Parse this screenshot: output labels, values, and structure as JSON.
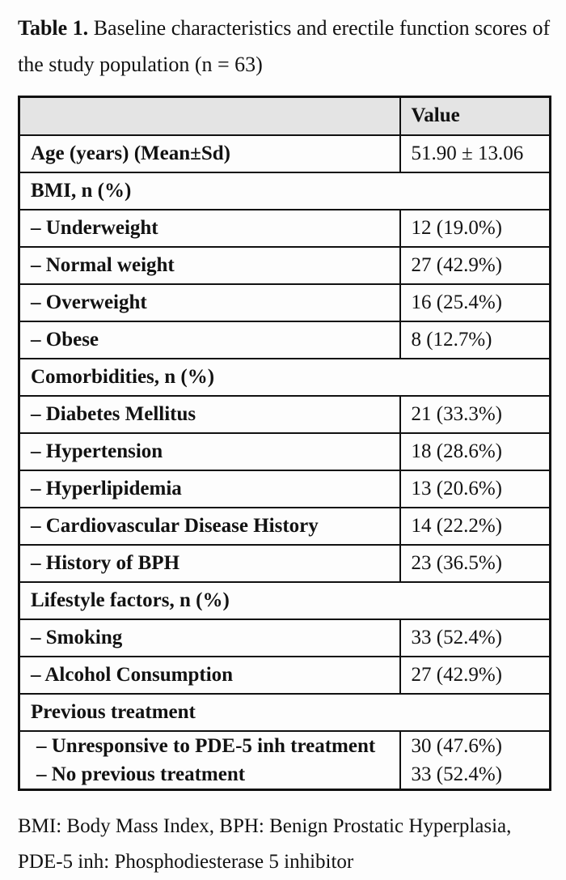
{
  "title": {
    "label": "Table 1.",
    "rest": "Baseline characteristics and erectile function scores of the study population (n = 63)"
  },
  "table": {
    "header": {
      "label": "",
      "value": "Value"
    },
    "rows": [
      {
        "type": "data",
        "label": "Age (years) (Mean±Sd)",
        "value": "51.90 ± 13.06"
      },
      {
        "type": "section",
        "label": "BMI, n (%)",
        "value": ""
      },
      {
        "type": "data",
        "label": "– Underweight",
        "value": "12 (19.0%)"
      },
      {
        "type": "data",
        "label": "– Normal weight",
        "value": "27 (42.9%)"
      },
      {
        "type": "data",
        "label": "– Overweight",
        "value": "16 (25.4%)"
      },
      {
        "type": "data",
        "label": "– Obese",
        "value": "8 (12.7%)"
      },
      {
        "type": "section",
        "label": "Comorbidities, n (%)",
        "value": ""
      },
      {
        "type": "data",
        "label": "– Diabetes Mellitus",
        "value": "21 (33.3%)"
      },
      {
        "type": "data",
        "label": "– Hypertension",
        "value": "18 (28.6%)"
      },
      {
        "type": "data",
        "label": "– Hyperlipidemia",
        "value": "13 (20.6%)"
      },
      {
        "type": "data",
        "label": "– Cardiovascular Disease History",
        "value": "14 (22.2%)"
      },
      {
        "type": "data",
        "label": "– History of BPH",
        "value": "23 (36.5%)"
      },
      {
        "type": "section",
        "label": "Lifestyle factors, n (%)",
        "value": ""
      },
      {
        "type": "data",
        "label": "– Smoking",
        "value": "33 (52.4%)"
      },
      {
        "type": "data",
        "label": "– Alcohol Consumption",
        "value": "27 (42.9%)"
      },
      {
        "type": "section",
        "label": "Previous treatment",
        "value": ""
      },
      {
        "type": "data",
        "label": "– Unresponsive to PDE-5 inh treatment",
        "value": "30 (47.6%)"
      },
      {
        "type": "data",
        "label": "– No previous treatment",
        "value": "33 (52.4%)"
      }
    ]
  },
  "footnote": "BMI: Body Mass Index, BPH: Benign Prostatic Hyperplasia, PDE-5 inh: Phosphodiesterase 5 inhibitor",
  "colors": {
    "header_bg": "#e4e4e4",
    "border": "#111111",
    "text": "#121212"
  }
}
